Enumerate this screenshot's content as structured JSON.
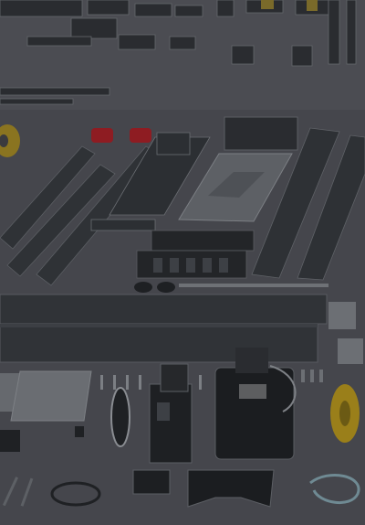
{
  "scene": {
    "description_hidden": "",
    "colors": {
      "floor": "#4a4a50",
      "floor_dark": "#3a3a40",
      "metal": "#2c2f33",
      "metal_light": "#6a6d72",
      "steel": "#55585d",
      "red": "#b3232b",
      "yellow": "#d6a21a",
      "cable": "#8fb3c0"
    }
  }
}
